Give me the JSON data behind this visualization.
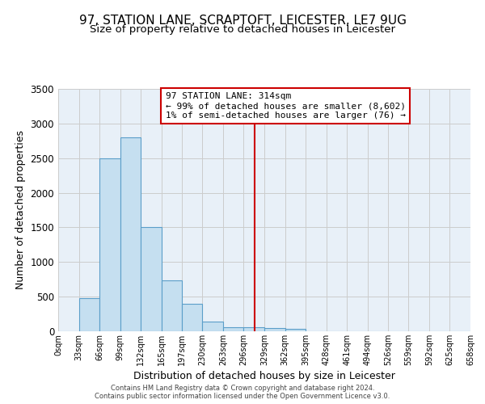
{
  "title": "97, STATION LANE, SCRAPTOFT, LEICESTER, LE7 9UG",
  "subtitle": "Size of property relative to detached houses in Leicester",
  "xlabel": "Distribution of detached houses by size in Leicester",
  "ylabel": "Number of detached properties",
  "bin_edges": [
    0,
    33,
    66,
    99,
    132,
    165,
    197,
    230,
    263,
    296,
    329,
    362,
    395,
    428,
    461,
    494,
    526,
    559,
    592,
    625,
    658
  ],
  "bar_heights": [
    5,
    480,
    2500,
    2800,
    1500,
    730,
    400,
    145,
    60,
    55,
    50,
    30,
    5,
    0,
    0,
    0,
    0,
    0,
    0,
    0
  ],
  "bar_color": "#c5dff0",
  "bar_edge_color": "#5b9ec9",
  "vline_x": 314,
  "vline_color": "#cc0000",
  "ylim": [
    0,
    3500
  ],
  "yticks": [
    0,
    500,
    1000,
    1500,
    2000,
    2500,
    3000,
    3500
  ],
  "annotation_title": "97 STATION LANE: 314sqm",
  "annotation_line1": "← 99% of detached houses are smaller (8,602)",
  "annotation_line2": "1% of semi-detached houses are larger (76) →",
  "annotation_box_color": "#cc0000",
  "grid_color": "#cccccc",
  "bg_color": "#e8f0f8",
  "footer_line1": "Contains HM Land Registry data © Crown copyright and database right 2024.",
  "footer_line2": "Contains public sector information licensed under the Open Government Licence v3.0.",
  "title_fontsize": 11,
  "subtitle_fontsize": 9.5,
  "xlabel_fontsize": 9,
  "ylabel_fontsize": 9
}
